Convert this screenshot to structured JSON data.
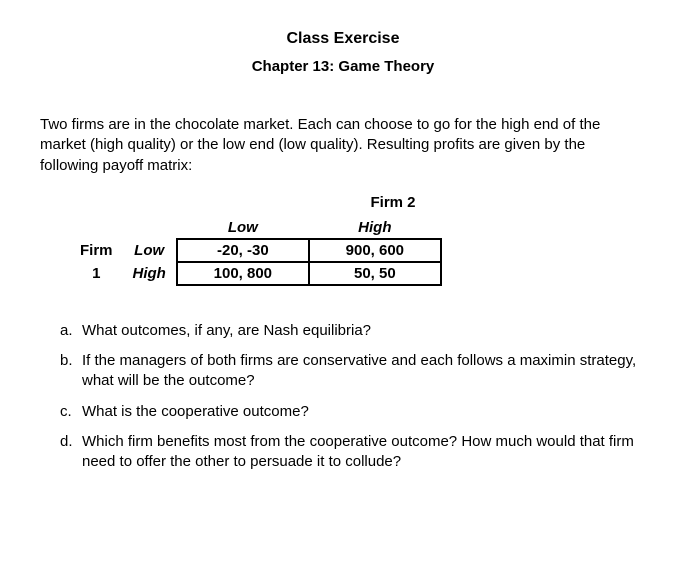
{
  "header": {
    "title": "Class Exercise",
    "subtitle": "Chapter 13: Game Theory"
  },
  "prompt": "Two firms are in the chocolate market. Each can choose to go for the high end of the market (high quality) or the low end (low quality). Resulting profits are given by the following payoff matrix:",
  "matrix": {
    "col_player": "Firm 2",
    "row_player_line1": "Firm",
    "row_player_line2": "1",
    "col_headers": [
      "Low",
      "High"
    ],
    "row_headers": [
      "Low",
      "High"
    ],
    "cells": [
      [
        "-20, -30",
        "900, 600"
      ],
      [
        "100, 800",
        "50, 50"
      ]
    ]
  },
  "questions": [
    {
      "letter": "a.",
      "text": "What outcomes, if any, are Nash equilibria?"
    },
    {
      "letter": "b.",
      "text": "If the managers of both firms are conservative and each follows a maximin strategy, what will be the outcome?"
    },
    {
      "letter": "c.",
      "text": "What is the cooperative outcome?"
    },
    {
      "letter": "d.",
      "text": "Which firm benefits most from the cooperative outcome? How much would that firm need to offer the other to persuade it to collude?"
    }
  ]
}
